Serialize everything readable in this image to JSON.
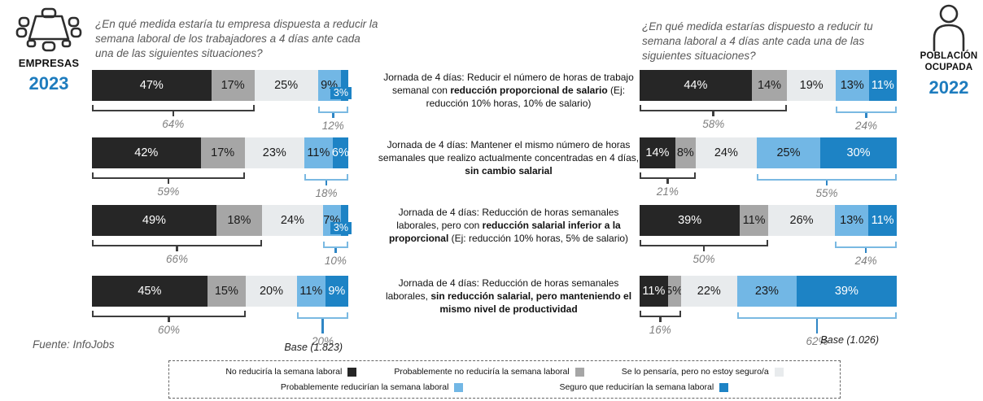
{
  "header_left": {
    "icon": "meeting-table-icon",
    "label": "EMPRESAS",
    "year": "2023",
    "question": "¿En qué medida estaría tu empresa dispuesta a reducir la semana laboral de los trabajadores a 4 días ante cada una de las siguientes situaciones?"
  },
  "header_right": {
    "icon": "person-icon",
    "label": "POBLACIÓN OCUPADA",
    "year": "2022",
    "question": "¿En qué medida estarías dispuesto a reducir tu semana laboral a 4 días ante cada una de las siguientes situaciones?"
  },
  "source": "Fuente: InfoJobs",
  "colors": {
    "black": "#262626",
    "gray": "#a6a6a6",
    "light_gray": "#e8ebed",
    "light_blue": "#72b7e5",
    "dark_blue": "#1d83c5",
    "orange": "#f8a44c",
    "accent_blue": "#1e7cbe"
  },
  "legend": {
    "items": [
      {
        "label": "No reduciría la semana laboral",
        "color_key": "black"
      },
      {
        "label": "Probablemente no reduciría la semana laboral",
        "color_key": "gray"
      },
      {
        "label": "Se lo pensaría, pero no estoy seguro/a",
        "color_key": "light_gray"
      },
      {
        "label": "Probablemente reducirían la semana laboral",
        "color_key": "light_blue"
      },
      {
        "label": "Seguro que reducirían la semana laboral",
        "color_key": "dark_blue"
      }
    ]
  },
  "scenarios": [
    {
      "runs": [
        {
          "t": "Jornada de 4 días: Reducir el número de horas de trabajo semanal con ",
          "b": false
        },
        {
          "t": "reducción proporcional de salario",
          "b": true
        },
        {
          "t": " (Ej: reducción 10% horas, 10% de salario)",
          "b": false
        }
      ]
    },
    {
      "runs": [
        {
          "t": "Jornada de 4 días: Mantener el mismo número de horas semanales que realizo actualmente concentradas en 4 días, ",
          "b": false
        },
        {
          "t": "sin cambio salarial",
          "b": true
        }
      ]
    },
    {
      "runs": [
        {
          "t": "Jornada de 4 días: Reducción de horas semanales laborales, pero con ",
          "b": false
        },
        {
          "t": "reducción salarial inferior a la proporcional",
          "b": true
        },
        {
          "t": " (Ej: reducción 10% horas, 5% de salario)",
          "b": false
        }
      ]
    },
    {
      "runs": [
        {
          "t": "Jornada de 4 días: Reducción de horas semanales laborales, ",
          "b": false
        },
        {
          "t": "sin reducción salarial, pero manteniendo el mismo nivel de productividad",
          "b": true
        }
      ]
    }
  ],
  "chart_data": [
    {
      "type": "bar",
      "stacked": true,
      "orientation": "horizontal",
      "group": "EMPRESAS",
      "year": "2023",
      "categories": [
        "Jornada de 4 días: Reducir el número de horas de trabajo semanal con reducción proporcional de salario (Ej: reducción 10% horas, 10% de salario)",
        "Jornada de 4 días: Mantener el mismo número de horas semanales que realizo actualmente concentradas en 4 días, sin cambio salarial",
        "Jornada de 4 días: Reducción de horas semanales laborales, pero con reducción salarial inferior a la proporcional (Ej: reducción 10% horas, 5% de salario)",
        "Jornada de 4 días: Reducción de horas semanales laborales, sin reducción salarial, pero manteniendo el mismo nivel de productividad"
      ],
      "series": [
        {
          "name": "No reduciría la semana laboral",
          "color_key": "black",
          "values": [
            47,
            42,
            49,
            45
          ]
        },
        {
          "name": "Probablemente no reduciría la semana laboral",
          "color_key": "gray",
          "values": [
            17,
            17,
            18,
            15
          ]
        },
        {
          "name": "Se lo pensaría, pero no estoy seguro/a",
          "color_key": "light_gray",
          "values": [
            25,
            23,
            24,
            20
          ]
        },
        {
          "name": "Probablemente reducirían la semana laboral",
          "color_key": "light_blue",
          "values": [
            9,
            11,
            7,
            11
          ]
        },
        {
          "name": "Seguro que reducirían la semana laboral",
          "color_key": "dark_blue",
          "values": [
            3,
            6,
            3,
            9
          ]
        }
      ],
      "bracket_totals_left": [
        "64%",
        "59%",
        "66%",
        "60%"
      ],
      "bracket_totals_right": [
        "12%",
        "18%",
        "10%",
        "20%"
      ],
      "base_label": "Base (1.823)"
    },
    {
      "type": "bar",
      "stacked": true,
      "orientation": "horizontal",
      "group": "POBLACIÓN OCUPADA",
      "year": "2022",
      "categories": [
        "Jornada de 4 días: Reducir el número de horas de trabajo semanal con reducción proporcional de salario (Ej: reducción 10% horas, 10% de salario)",
        "Jornada de 4 días: Mantener el mismo número de horas semanales que realizo actualmente concentradas en 4 días, sin cambio salarial",
        "Jornada de 4 días: Reducción de horas semanales laborales, pero con reducción salarial inferior a la proporcional (Ej: reducción 10% horas, 5% de salario)",
        "Jornada de 4 días: Reducción de horas semanales laborales, sin reducción salarial, pero manteniendo el mismo nivel de productividad"
      ],
      "series": [
        {
          "name": "No reduciría la semana laboral",
          "color_key": "black",
          "values": [
            44,
            14,
            39,
            11
          ]
        },
        {
          "name": "Probablemente no reduciría la semana laboral",
          "color_key": "gray",
          "values": [
            14,
            8,
            11,
            5
          ]
        },
        {
          "name": "Se lo pensaría, pero no estoy seguro/a",
          "color_key": "light_gray",
          "values": [
            19,
            24,
            26,
            22
          ]
        },
        {
          "name": "Probablemente reducirían la semana laboral",
          "color_key": "light_blue",
          "values": [
            13,
            25,
            13,
            23
          ]
        },
        {
          "name": "Seguro que reducirían la semana laboral",
          "color_key": "dark_blue",
          "values": [
            11,
            30,
            11,
            39
          ]
        }
      ],
      "bracket_totals_left": [
        "58%",
        "21%",
        "50%",
        "16%"
      ],
      "bracket_totals_right": [
        "24%",
        "55%",
        "24%",
        "62%"
      ],
      "base_label": "Base (1.026)"
    }
  ]
}
